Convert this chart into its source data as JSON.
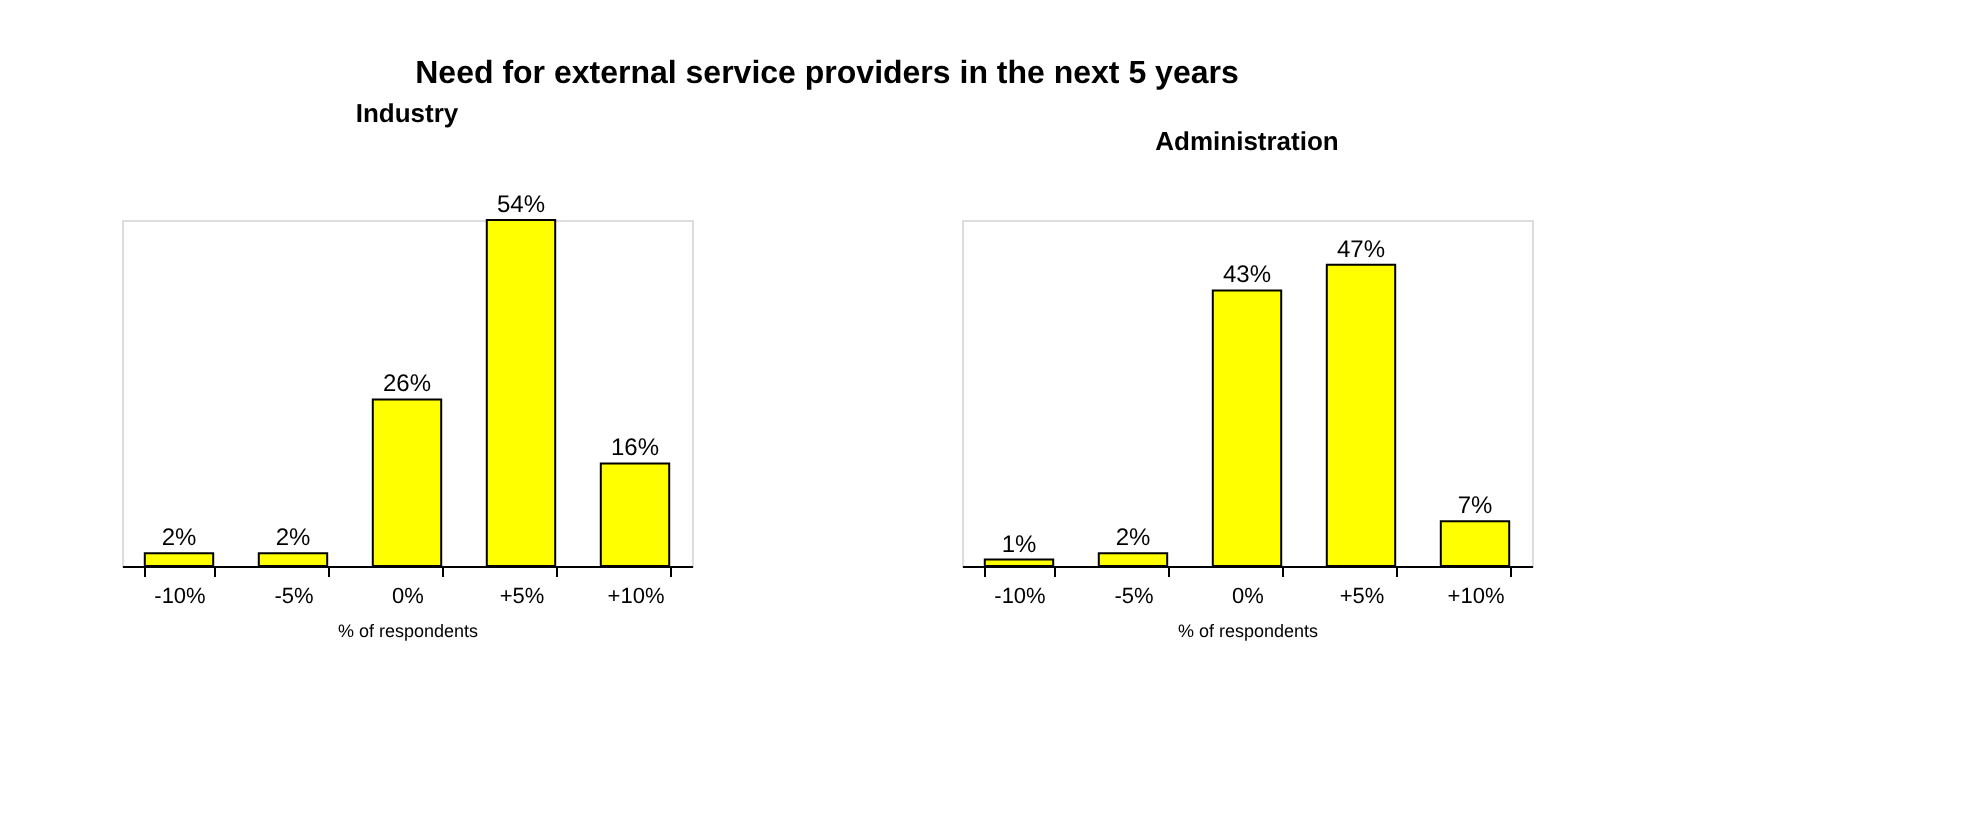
{
  "chart_data": [
    {
      "type": "bar",
      "title": "Need for external service providers in the next 5 years",
      "subtitle": "Industry",
      "xlabel": "% of respondents",
      "categories": [
        "-10%",
        "-5%",
        "0%",
        "+5%",
        "+10%"
      ],
      "values": [
        2,
        2,
        26,
        54,
        16
      ],
      "value_labels": [
        "2%",
        "2%",
        "26%",
        "54%",
        "16%"
      ],
      "color": "#ffff00"
    },
    {
      "type": "bar",
      "subtitle": "Administration",
      "xlabel": "% of respondents",
      "categories": [
        "-10%",
        "-5%",
        "0%",
        "+5%",
        "+10%"
      ],
      "values": [
        1,
        2,
        43,
        47,
        7
      ],
      "value_labels": [
        "1%",
        "2%",
        "43%",
        "47%",
        "7%"
      ],
      "color": "#ffff00"
    }
  ]
}
